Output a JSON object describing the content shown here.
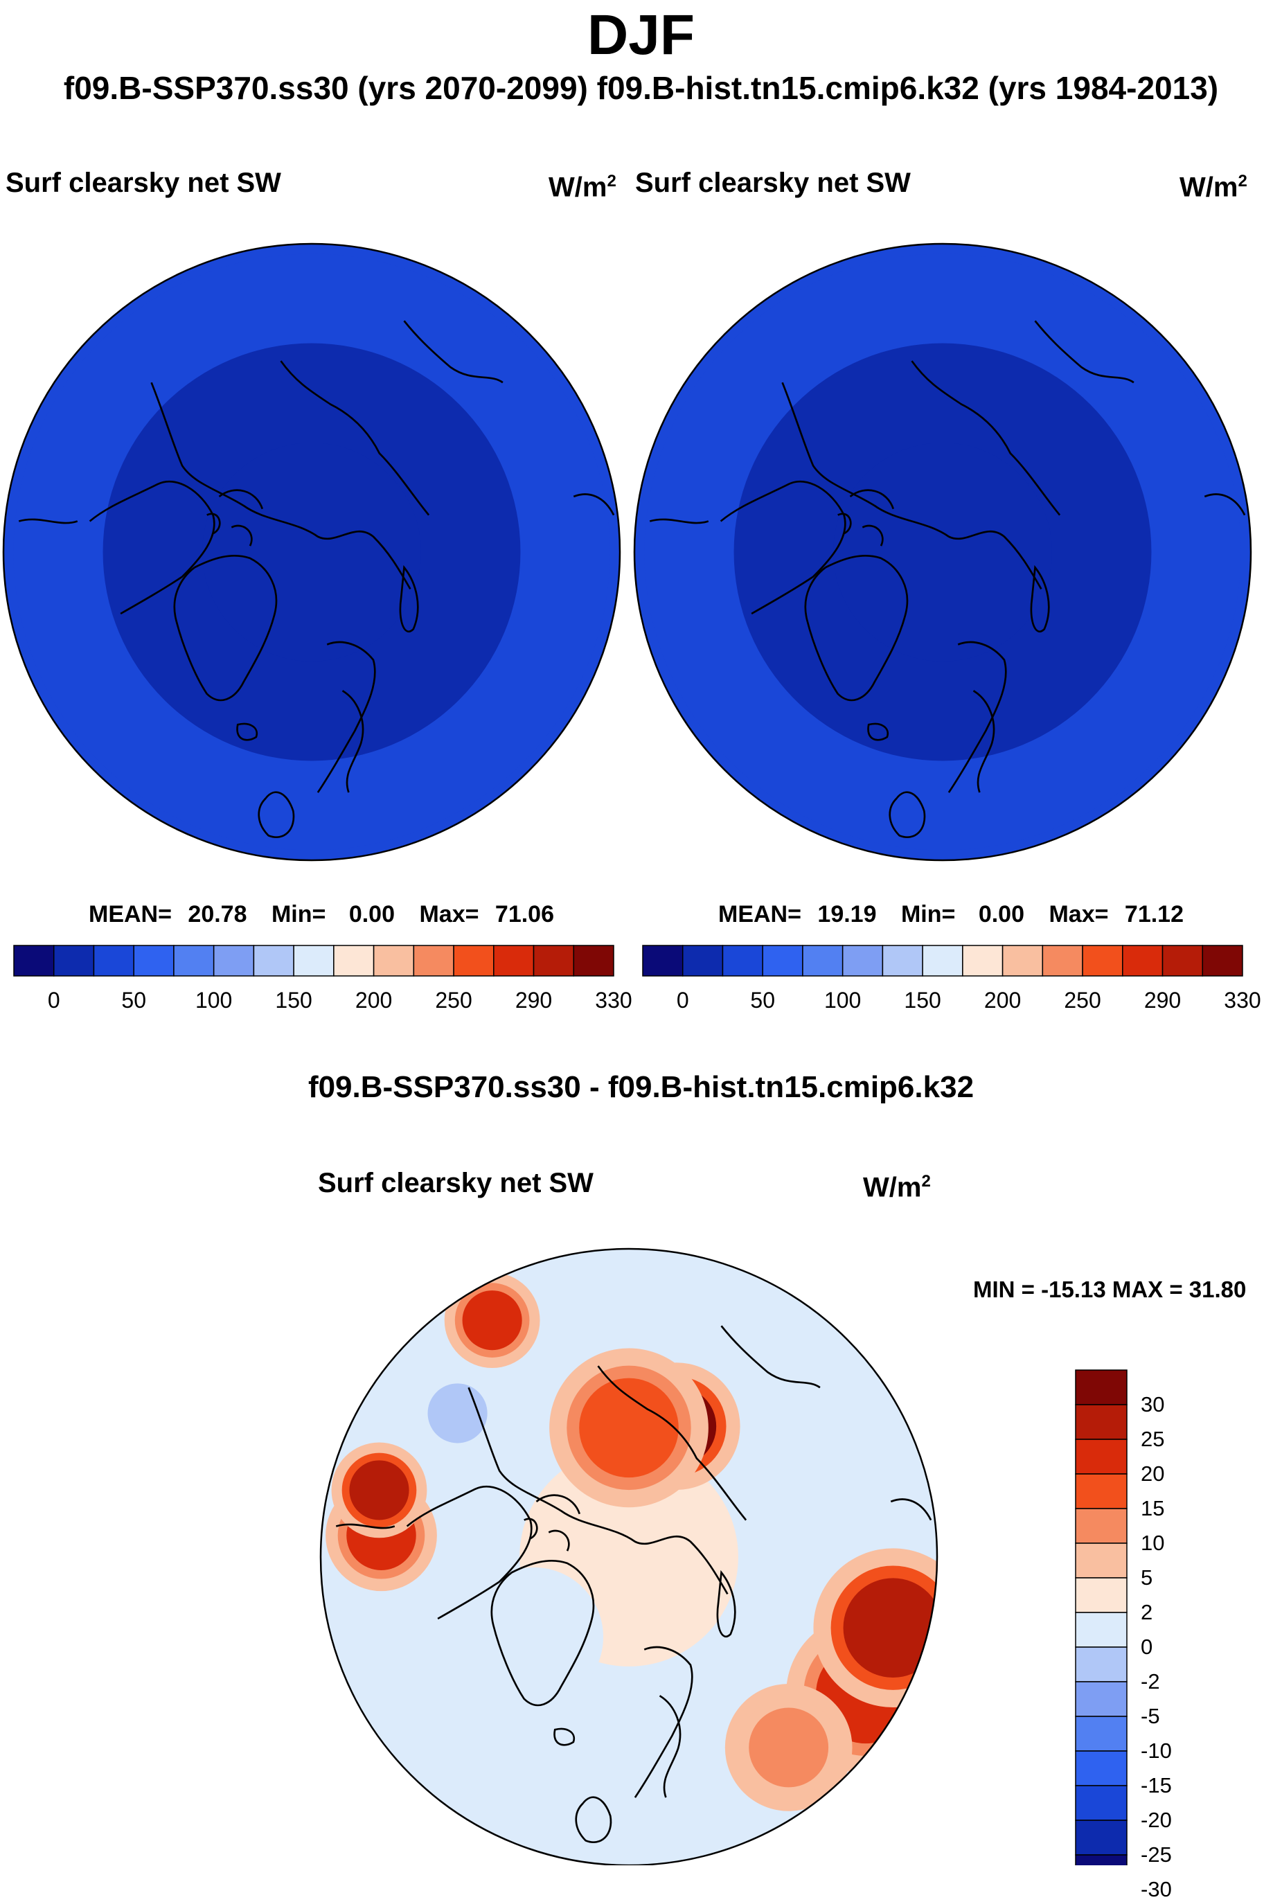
{
  "figure": {
    "title": "DJF",
    "subtitle": "f09.B-SSP370.ss30 (yrs 2070-2099)  f09.B-hist.tn15.cmip6.k32 (yrs 1984-2013)",
    "difference_title": "f09.B-SSP370.ss30 - f09.B-hist.tn15.cmip6.k32"
  },
  "chart_data": [
    {
      "type": "heatmap",
      "projection": "north-polar-stereographic",
      "title": "Surf clearsky net SW",
      "units": "W/m",
      "units_superscript": "2",
      "stats": {
        "mean_label": "MEAN=",
        "mean": "20.78",
        "min_label": "Min=",
        "min": "0.00",
        "max_label": "Max=",
        "max": "71.06"
      },
      "colorbar": {
        "colors": [
          "#0a0a78",
          "#0d2bae",
          "#1a47d8",
          "#2f62f0",
          "#5280f2",
          "#7e9ef3",
          "#b0c7f7",
          "#dcebfb",
          "#fde6d6",
          "#f9bfa0",
          "#f58a60",
          "#f2501c",
          "#d92b0b",
          "#b51c08",
          "#7f0705"
        ],
        "tick_labels": [
          "0",
          "50",
          "100",
          "150",
          "200",
          "250",
          "290",
          "330"
        ]
      },
      "field_zones": [
        {
          "lat_min": 68,
          "value": 5
        },
        {
          "lat_min": 48,
          "value": 20
        },
        {
          "lat_min": 30,
          "value": 45
        }
      ]
    },
    {
      "type": "heatmap",
      "projection": "north-polar-stereographic",
      "title": "Surf clearsky net SW",
      "units": "W/m",
      "units_superscript": "2",
      "stats": {
        "mean_label": "MEAN=",
        "mean": "19.19",
        "min_label": "Min=",
        "min": "0.00",
        "max_label": "Max=",
        "max": "71.12"
      },
      "colorbar": {
        "colors": [
          "#0a0a78",
          "#0d2bae",
          "#1a47d8",
          "#2f62f0",
          "#5280f2",
          "#7e9ef3",
          "#b0c7f7",
          "#dcebfb",
          "#fde6d6",
          "#f9bfa0",
          "#f58a60",
          "#f2501c",
          "#d92b0b",
          "#b51c08",
          "#7f0705"
        ],
        "tick_labels": [
          "0",
          "50",
          "100",
          "150",
          "200",
          "250",
          "290",
          "330"
        ]
      },
      "field_zones": [
        {
          "lat_min": 68,
          "value": 5
        },
        {
          "lat_min": 48,
          "value": 20
        },
        {
          "lat_min": 30,
          "value": 45
        }
      ]
    },
    {
      "type": "heatmap",
      "projection": "north-polar-stereographic",
      "title": "Surf clearsky net SW",
      "units": "W/m",
      "units_superscript": "2",
      "minmax_label": "MIN = -15.13 MAX =  31.80",
      "colorbar": {
        "colors": [
          "#0a0a78",
          "#0d2bae",
          "#1a47d8",
          "#2f62f0",
          "#5280f2",
          "#7e9ef3",
          "#b0c7f7",
          "#dcebfb",
          "#fde6d6",
          "#f9bfa0",
          "#f58a60",
          "#f2501c",
          "#d92b0b",
          "#b51c08",
          "#7f0705"
        ],
        "tick_labels": [
          "-30",
          "-25",
          "-20",
          "-15",
          "-10",
          "-5",
          "-2",
          "0",
          "2",
          "5",
          "10",
          "15",
          "20",
          "25",
          "30"
        ]
      },
      "field_blobs": [
        {
          "lon": 0,
          "lat": 90,
          "radius_deg": 22,
          "value": 1
        },
        {
          "lon": 160,
          "lat": 62,
          "radius_deg": 8,
          "value": 28
        },
        {
          "lon": 180,
          "lat": 64,
          "radius_deg": 10,
          "value": 12
        },
        {
          "lon": -95,
          "lat": 40,
          "radius_deg": 7,
          "value": 18
        },
        {
          "lon": -105,
          "lat": 38,
          "radius_deg": 6,
          "value": 22
        },
        {
          "lon": -150,
          "lat": 35,
          "radius_deg": 6,
          "value": 18
        },
        {
          "lon": 60,
          "lat": 35,
          "radius_deg": 10,
          "value": 16
        },
        {
          "lon": 75,
          "lat": 35,
          "radius_deg": 10,
          "value": 22
        },
        {
          "lon": 40,
          "lat": 40,
          "radius_deg": 8,
          "value": 8
        },
        {
          "lon": -50,
          "lat": 65,
          "radius_deg": 14,
          "value": -1
        },
        {
          "lon": -130,
          "lat": 45,
          "radius_deg": 6,
          "value": -4
        }
      ]
    }
  ]
}
